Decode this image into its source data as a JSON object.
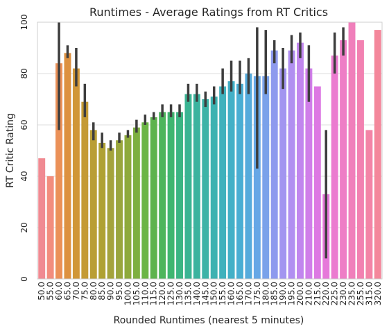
{
  "chart_data": {
    "type": "bar",
    "title": "Runtimes - Average Ratings from RT Critics",
    "xlabel": "Rounded Runtimes (nearest 5 minutes)",
    "ylabel": "RT Critic Rating",
    "ylim": [
      0,
      100
    ],
    "yticks": [
      "0",
      "20",
      "40",
      "60",
      "80",
      "100"
    ],
    "grid": "horizontal",
    "legend": "none",
    "categories": [
      "50.0",
      "55.0",
      "60.0",
      "65.0",
      "70.0",
      "75.0",
      "80.0",
      "85.0",
      "90.0",
      "95.0",
      "100.0",
      "105.0",
      "110.0",
      "115.0",
      "120.0",
      "125.0",
      "130.0",
      "135.0",
      "140.0",
      "145.0",
      "150.0",
      "155.0",
      "160.0",
      "165.0",
      "170.0",
      "175.0",
      "180.0",
      "185.0",
      "190.0",
      "195.0",
      "200.0",
      "210.0",
      "215.0",
      "220.0",
      "225.0",
      "230.0",
      "235.0",
      "255.0",
      "315.0",
      "320.0"
    ],
    "values": [
      47,
      40,
      84,
      88,
      82,
      69,
      58,
      53,
      51,
      54,
      56,
      59,
      61,
      63,
      65,
      65,
      65,
      72,
      72,
      70,
      71,
      75,
      77,
      76,
      80,
      79,
      79,
      89,
      82,
      89,
      92,
      82,
      75,
      33,
      87,
      93,
      100,
      93,
      58,
      97
    ],
    "error_low": [
      null,
      null,
      58,
      86,
      75,
      63,
      54,
      51,
      50,
      53,
      55,
      57,
      60,
      62,
      63,
      63,
      63,
      69,
      69,
      67,
      68,
      72,
      73,
      72,
      72,
      43,
      72,
      84,
      74,
      84,
      86,
      69,
      null,
      8,
      80,
      87,
      null,
      null,
      null,
      null
    ],
    "error_high": [
      null,
      null,
      100,
      91,
      90,
      76,
      61,
      57,
      54,
      57,
      58,
      62,
      64,
      65,
      68,
      68,
      68,
      76,
      76,
      73,
      75,
      82,
      85,
      85,
      86,
      98,
      97,
      93,
      90,
      95,
      96,
      91,
      null,
      58,
      96,
      98,
      null,
      null,
      null,
      null
    ],
    "colors": [
      "#f08a92",
      "#f28d7e",
      "#eb9158",
      "#dd9140",
      "#d09637",
      "#c49a34",
      "#b99e35",
      "#afa133",
      "#a4a33c",
      "#99a63d",
      "#8eaa3c",
      "#7daf40",
      "#6bb545",
      "#5db34e",
      "#4db55c",
      "#3fb670",
      "#3bb583",
      "#3ab493",
      "#3cb39f",
      "#3db3a7",
      "#3db2b1",
      "#3fb1bc",
      "#42b0c7",
      "#49aed3",
      "#55abdc",
      "#66a7e6",
      "#7aa2ea",
      "#8e9aee",
      "#a295f0",
      "#b18ff1",
      "#c186ee",
      "#d07ee9",
      "#dd79e3",
      "#e679da",
      "#eb7bd0",
      "#ee7ec6",
      "#f07fbb",
      "#f281b1",
      "#f384a6",
      "#f4879b"
    ]
  }
}
